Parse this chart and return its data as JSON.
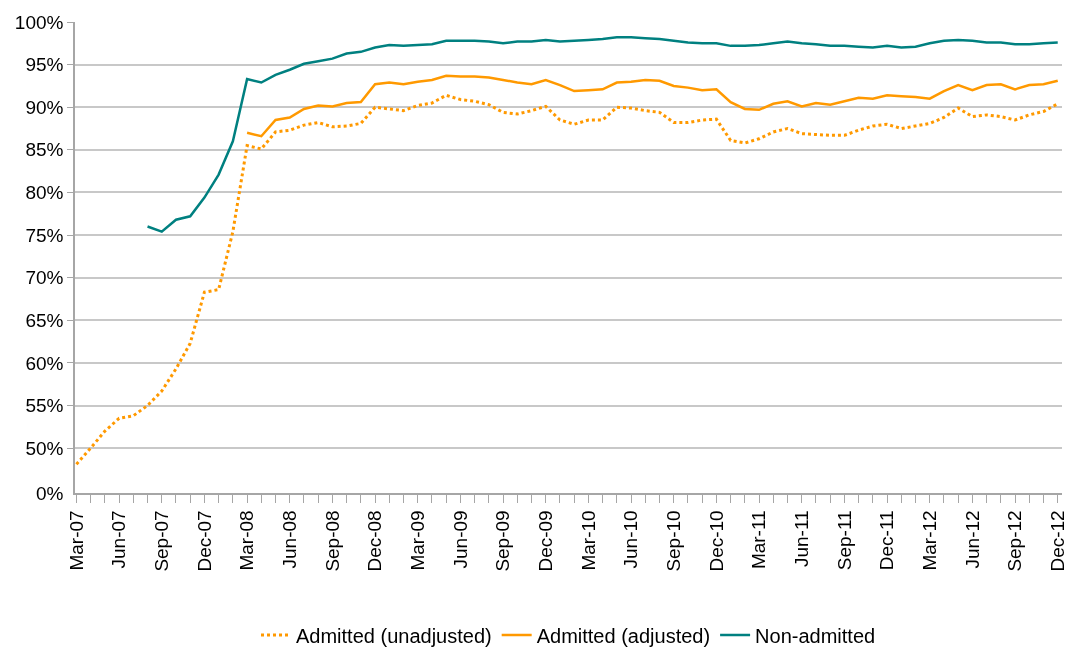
{
  "chart_data": [
    {
      "type": "line",
      "categories": [
        "Mar-07",
        null,
        null,
        "Jun-07",
        null,
        null,
        "Sep-07",
        null,
        null,
        "Dec-07",
        null,
        null,
        "Mar-08",
        null,
        null,
        "Jun-08",
        null,
        null,
        "Sep-08",
        null,
        null,
        "Dec-08",
        null,
        null,
        "Mar-09",
        null,
        null,
        "Jun-09",
        null,
        null,
        "Sep-09",
        null,
        null,
        "Dec-09",
        null,
        null,
        "Mar-10",
        null,
        null,
        "Jun-10",
        null,
        null,
        "Sep-10",
        null,
        null,
        "Dec-10",
        null,
        null,
        "Mar-11",
        null,
        null,
        "Jun-11",
        null,
        null,
        "Sep-11",
        null,
        null,
        "Dec-11",
        null,
        null,
        "Mar-12",
        null,
        null,
        "Jun-12",
        null,
        null,
        "Sep-12",
        null,
        null,
        "Dec-12"
      ],
      "series": [
        {
          "name": "Admitted (unadjusted)",
          "color": "#ff9900",
          "line_style": "dotted",
          "values": [
            48.1,
            50.0,
            52.0,
            53.5,
            53.8,
            55.0,
            56.7,
            59.3,
            62.3,
            68.3,
            68.6,
            75.4,
            85.5,
            85.1,
            87.1,
            87.3,
            87.9,
            88.2,
            87.7,
            87.8,
            88.1,
            90.0,
            89.8,
            89.6,
            90.2,
            90.5,
            91.4,
            90.9,
            90.7,
            90.3,
            89.4,
            89.2,
            89.6,
            90.1,
            88.5,
            88.0,
            88.5,
            88.5,
            90.0,
            89.9,
            89.6,
            89.4,
            88.2,
            88.2,
            88.5,
            88.6,
            86.1,
            85.8,
            86.3,
            87.1,
            87.5,
            86.9,
            86.8,
            86.7,
            86.7,
            87.3,
            87.8,
            88.0,
            87.5,
            87.8,
            88.1,
            88.8,
            89.9,
            88.9,
            89.1,
            88.9,
            88.5,
            89.1,
            89.5,
            90.4
          ]
        },
        {
          "name": "Admitted (adjusted)",
          "color": "#ff9900",
          "line_style": "solid",
          "values": [
            null,
            null,
            null,
            null,
            null,
            null,
            null,
            null,
            null,
            null,
            null,
            null,
            87.0,
            86.6,
            88.5,
            88.8,
            89.8,
            90.2,
            90.1,
            90.5,
            90.6,
            92.7,
            92.9,
            92.7,
            93.0,
            93.2,
            93.7,
            93.6,
            93.6,
            93.5,
            93.2,
            92.9,
            92.7,
            93.2,
            92.6,
            91.9,
            92.0,
            92.1,
            92.9,
            93.0,
            93.2,
            93.1,
            92.5,
            92.3,
            92.0,
            92.1,
            90.6,
            89.8,
            89.7,
            90.4,
            90.7,
            90.1,
            90.5,
            90.3,
            90.7,
            91.1,
            91.0,
            91.4,
            91.3,
            91.2,
            91.0,
            91.9,
            92.6,
            92.0,
            92.6,
            92.7,
            92.1,
            92.6,
            92.7,
            93.1
          ]
        },
        {
          "name": "Non-admitted",
          "color": "#008080",
          "line_style": "solid",
          "values": [
            null,
            null,
            null,
            null,
            null,
            76.0,
            75.4,
            76.8,
            77.2,
            79.4,
            82.1,
            86.0,
            93.3,
            92.9,
            93.8,
            94.4,
            95.1,
            95.4,
            95.7,
            96.3,
            96.5,
            97.0,
            97.3,
            97.2,
            97.3,
            97.4,
            97.8,
            97.8,
            97.8,
            97.7,
            97.5,
            97.7,
            97.7,
            97.9,
            97.7,
            97.8,
            97.9,
            98.0,
            98.2,
            98.2,
            98.1,
            98.0,
            97.8,
            97.6,
            97.5,
            97.5,
            97.2,
            97.2,
            97.3,
            97.5,
            97.7,
            97.5,
            97.4,
            97.2,
            97.2,
            97.1,
            97.0,
            97.2,
            97.0,
            97.1,
            97.5,
            97.8,
            97.9,
            97.8,
            97.6,
            97.6,
            97.4,
            97.4,
            97.5,
            97.6
          ]
        }
      ],
      "ylim": [
        47.5,
        100
      ],
      "yticks": [
        {
          "value": 50,
          "label": "50%"
        },
        {
          "value": 55,
          "label": "55%"
        },
        {
          "value": 60,
          "label": "60%"
        },
        {
          "value": 65,
          "label": "65%"
        },
        {
          "value": 70,
          "label": "70%"
        },
        {
          "value": 75,
          "label": "75%"
        },
        {
          "value": 80,
          "label": "80%"
        },
        {
          "value": 85,
          "label": "85%"
        },
        {
          "value": 90,
          "label": "90%"
        },
        {
          "value": 95,
          "label": "95%"
        },
        {
          "value": 100,
          "label": "100%"
        }
      ],
      "grid": "y",
      "legend": "bottom",
      "marker": "none"
    },
    {
      "type": "other",
      "annotations": [
        "0%"
      ]
    }
  ]
}
